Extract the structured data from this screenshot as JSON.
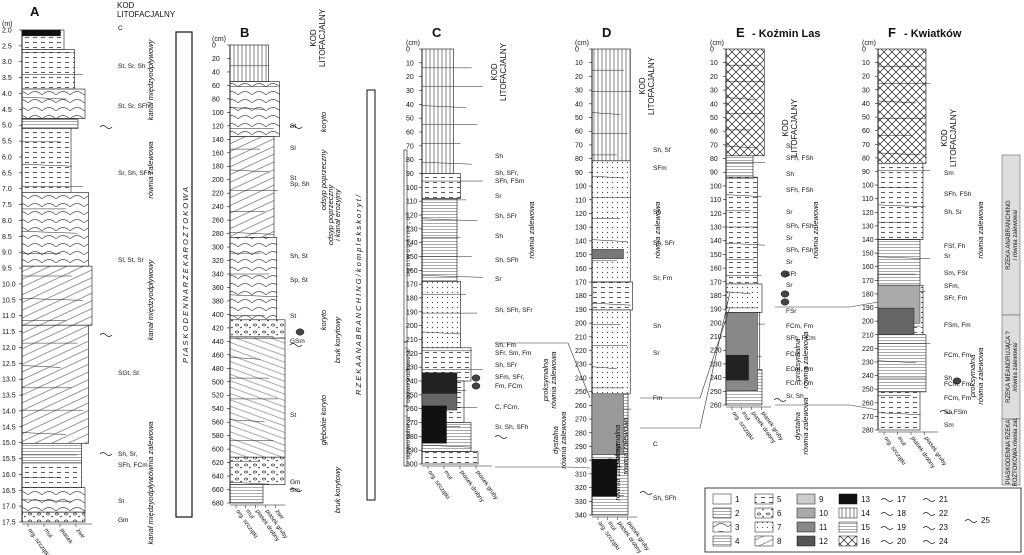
{
  "columns": [
    {
      "letter": "A",
      "title": "",
      "code_header": "KOD\nLITOFACJALNY",
      "unit": "(m)",
      "ticks": [
        "2.0",
        "2.5",
        "3.0",
        "3.5",
        "4.0",
        "4.5",
        "5.0",
        "5.5",
        "6.0",
        "6.5",
        "7.0",
        "7.5",
        "8.0",
        "8.5",
        "9.0",
        "9.5",
        "10.0",
        "10.5",
        "11.0",
        "11.5",
        "12.0",
        "12.5",
        "13.0",
        "13.5",
        "14.0",
        "14.5",
        "15.0",
        "15.5",
        "16.0",
        "16.5",
        "17.0",
        "17.5"
      ],
      "codes": [
        "C",
        "St, Sr, Sh",
        "St, Sr, SFh",
        "Sr, Sh, SFh",
        "Sl, St, Sr",
        "SGt, St",
        "Sh, Sr,",
        "SFh, FCm",
        "St",
        "Gm"
      ],
      "env": [
        "kanał międzyodpływowy",
        "równia zalewowa",
        "kanał międzyodpływowy",
        "równia zalewowa",
        "kanał międzyodpływ."
      ],
      "big": "P I A S K O D E N N A   R Z E K A   R O Z T O K O W A",
      "bottom": [
        "org. szczątki",
        "muł",
        "piasek",
        "żwir"
      ]
    },
    {
      "letter": "B",
      "title": "",
      "code_header": "KOD\nLITOFACJALNY",
      "unit": "(cm)",
      "ticks": [
        "0",
        "20",
        "40",
        "60",
        "80",
        "100",
        "120",
        "140",
        "160",
        "180",
        "200",
        "220",
        "240",
        "260",
        "280",
        "300",
        "320",
        "340",
        "360",
        "380",
        "400",
        "420",
        "440",
        "460",
        "480",
        "500",
        "520",
        "540",
        "560",
        "580",
        "600",
        "620",
        "640",
        "660",
        "680"
      ],
      "codes": [
        "St",
        "Sl",
        "St",
        "Sp, Sh",
        "Sh, St",
        "Sp, St",
        "St",
        "GSm",
        "St",
        "Gm",
        "Sm"
      ],
      "env": [
        "koryto",
        "odsyp poprzeczny",
        "odsyp poprzeczny",
        "i kanał erozyjny",
        "koryto",
        "bruk korytowy",
        "głębokie koryto",
        "bruk korytowy"
      ],
      "big": "R Z E K A   A N A B R A N C H I N G   / k o m p l e k s   k o r y t /",
      "bottom": [
        "org. szczątki",
        "muł",
        "piasek drobny",
        "piasek gruby",
        "żwir"
      ]
    },
    {
      "letter": "C",
      "title": "",
      "code_header": "KOD\nLITOFACJALNY",
      "unit": "(cm)",
      "ticks": [
        "0",
        "10",
        "20",
        "30",
        "40",
        "50",
        "60",
        "70",
        "80",
        "90",
        "100",
        "110",
        "120",
        "130",
        "140",
        "150",
        "160",
        "170",
        "180",
        "190",
        "200",
        "210",
        "220",
        "230",
        "240",
        "250",
        "260",
        "270",
        "280",
        "290",
        "300"
      ],
      "codes": [
        "Sh",
        "Sh, SFr,",
        "SFh, FSm",
        "Sr",
        "Sh, SFr",
        "Sh",
        "Sh, SFh",
        "Sr",
        "Sh, SFh, SFr",
        "Sh, Fm",
        "SFr, Sm, Fm",
        "Sh, SFr",
        "SFm, SFr,",
        "Fm, FCm",
        "C, FCm,",
        "Sr, Sh, SFh"
      ],
      "env": [
        "równia zalewowa",
        "proksymalna",
        "równia zalewowa",
        "dystalna",
        "równia zalewowa"
      ],
      "brackets": [
        "o g n i w o   g ó r n e   „ c ”",
        "ogniwo środkowe „b”",
        "ogniwo dolne „a”"
      ],
      "bottom": [
        "org. szczątki",
        "muł",
        "piasek drobny",
        "piasek gruby"
      ]
    },
    {
      "letter": "D",
      "title": "",
      "code_header": "KOD\nLITOFACJALNY",
      "unit": "(cm)",
      "ticks": [
        "0",
        "10",
        "20",
        "30",
        "40",
        "50",
        "60",
        "70",
        "80",
        "90",
        "100",
        "110",
        "120",
        "130",
        "140",
        "150",
        "160",
        "170",
        "180",
        "190",
        "200",
        "210",
        "220",
        "230",
        "240",
        "250",
        "260",
        "270",
        "280",
        "290",
        "300",
        "310",
        "320",
        "330",
        "340"
      ],
      "codes": [
        "Sh, Sf",
        "SFm",
        "Sh",
        "Sh, SFr",
        "Sr, Fm",
        "Sh",
        "Sr",
        "Fm",
        "C",
        "Sh, SFh"
      ],
      "env": [
        "równia zalewowa",
        "proksymalna",
        "równia zalewowa",
        "dystalna",
        "równia zalewowa"
      ],
      "bottom": [
        "org. szczątki",
        "muł",
        "piasek drobny",
        "piasek gruby"
      ]
    },
    {
      "letter": "E",
      "title": "Koźmin Las",
      "code_header": "KOD\nLITOFACJALNY",
      "unit": "(cm)",
      "ticks": [
        "0",
        "10",
        "20",
        "30",
        "40",
        "50",
        "60",
        "70",
        "80",
        "90",
        "100",
        "110",
        "120",
        "130",
        "140",
        "150",
        "160",
        "170",
        "180",
        "190",
        "200",
        "210",
        "220",
        "230",
        "240",
        "250",
        "260"
      ],
      "codes": [
        "Sl",
        "SFh, FSh",
        "Sh",
        "SFh, FSh",
        "Sr",
        "SFh, FSh",
        "Sr",
        "SFh, FSh",
        "Sr",
        "SFt",
        "Sr",
        "FSr",
        "FCm, Fm",
        "SFh, FCm",
        "FCm",
        "ECm, Fm",
        "FCm, Fm",
        "Sr, Sh"
      ],
      "env": [
        "równia zalewowa",
        "proksymalna",
        "równia zalewowa",
        "dystalna",
        "równia zalewowa"
      ],
      "bottom": [
        "org. szczątki",
        "muł",
        "piasek drobny",
        "piasek gruby"
      ]
    },
    {
      "letter": "F",
      "title": "Kwiatków",
      "code_header": "KOD\nLITOFACJALNY",
      "unit": "(cm)",
      "ticks": [
        "0",
        "10",
        "20",
        "30",
        "40",
        "50",
        "60",
        "70",
        "80",
        "90",
        "100",
        "110",
        "120",
        "130",
        "140",
        "150",
        "160",
        "170",
        "180",
        "190",
        "200",
        "210",
        "220",
        "230",
        "240",
        "250",
        "260",
        "270",
        "280"
      ],
      "codes": [
        "Sm",
        "SFh, FSh",
        "Sh, Sr",
        "FSf, Fh",
        "Sr",
        "Sm, FSr",
        "SFm,",
        "SFr, Fm",
        "FSm, Fm",
        "FCm, Fm",
        "Sh",
        "FCm, Fm",
        "FCm, Fm",
        "Sh,FSm",
        "Sm"
      ],
      "env": [
        "równia zalewowa",
        "proksymalna",
        "równia zalewowa"
      ],
      "right_labels": [
        "RZEKA ANABRANCHING",
        "/ równia zalewowa/",
        "RZEKA MEANDRUJĄCA ?",
        "/równia zalewowa/",
        "PIASKODENNA RZEKA",
        "ROZTOKOWA równia zal."
      ],
      "bottom": [
        "org. szczątki",
        "muł",
        "piasek drobny",
        "piasek gruby"
      ]
    }
  ],
  "legend": {
    "items": [
      "1",
      "2",
      "3",
      "4",
      "5",
      "6",
      "7",
      "8",
      "9",
      "10",
      "11",
      "12",
      "13",
      "14",
      "15",
      "16",
      "17",
      "18",
      "19",
      "20",
      "21",
      "22",
      "23",
      "24",
      "25"
    ]
  }
}
